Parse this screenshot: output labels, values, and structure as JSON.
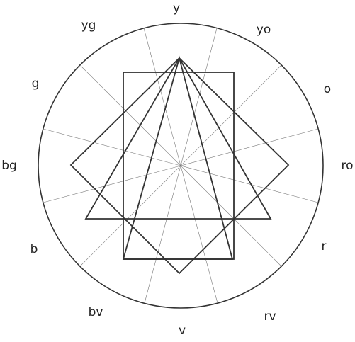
{
  "wheel": {
    "hues": [
      {
        "label": "y"
      },
      {
        "label": "yo"
      },
      {
        "label": "o"
      },
      {
        "label": "ro"
      },
      {
        "label": "r"
      },
      {
        "label": "rv"
      },
      {
        "label": "v"
      },
      {
        "label": "bv"
      },
      {
        "label": "b"
      },
      {
        "label": "bg"
      },
      {
        "label": "g"
      },
      {
        "label": "yg"
      }
    ]
  }
}
